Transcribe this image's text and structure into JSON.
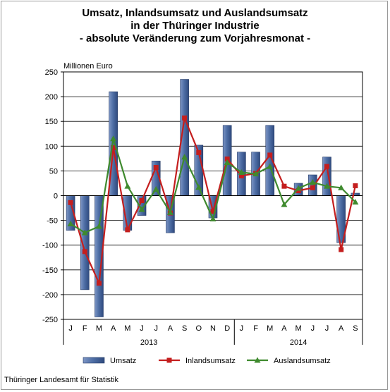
{
  "title_lines": [
    "Umsatz, Inlandsumsatz und Auslandsumsatz",
    "in der Thüringer Industrie",
    "- absolute Veränderung zum Vorjahresmonat -"
  ],
  "unit_label": "Millionen Euro",
  "source": "Thüringer Landesamt für Statistik",
  "colors": {
    "umsatz_fill": "#4f6fa6",
    "inland": "#c41e1e",
    "ausland": "#3f8a2e"
  },
  "chart_data": {
    "type": "bar+line",
    "title": "Umsatz, Inlandsumsatz und Auslandsumsatz in der Thüringer Industrie - absolute Veränderung zum Vorjahresmonat -",
    "ylabel": "Millionen Euro",
    "ylim": [
      -250,
      250
    ],
    "yticks": [
      250,
      200,
      150,
      100,
      50,
      0,
      -50,
      -100,
      -150,
      -200,
      -250
    ],
    "categories": [
      "J",
      "F",
      "M",
      "A",
      "M",
      "J",
      "J",
      "A",
      "S",
      "O",
      "N",
      "D",
      "J",
      "F",
      "M",
      "A",
      "M",
      "J",
      "J",
      "A",
      "S"
    ],
    "year_groups": [
      {
        "label": "2013",
        "start": 0,
        "end": 11
      },
      {
        "label": "2014",
        "start": 12,
        "end": 20
      }
    ],
    "series": [
      {
        "name": "Umsatz",
        "kind": "bar",
        "values": [
          -70,
          -190,
          -245,
          210,
          -70,
          -40,
          70,
          -75,
          235,
          102,
          -45,
          142,
          88,
          88,
          142,
          0,
          25,
          42,
          78,
          -95,
          5
        ]
      },
      {
        "name": "Inlandsumsatz",
        "kind": "line",
        "values": [
          -14,
          -113,
          -177,
          97,
          -69,
          -10,
          57,
          -35,
          157,
          87,
          -32,
          74,
          40,
          45,
          82,
          19,
          10,
          16,
          59,
          -109,
          20
        ]
      },
      {
        "name": "Auslandsumsatz",
        "kind": "line",
        "values": [
          -57,
          -75,
          -62,
          115,
          19,
          -28,
          13,
          -34,
          78,
          17,
          -47,
          67,
          47,
          44,
          59,
          -18,
          15,
          27,
          19,
          16,
          -13
        ]
      }
    ],
    "legend": [
      "Umsatz",
      "Inlandsumsatz",
      "Auslandsumsatz"
    ],
    "legend_position": "bottom",
    "grid": true
  }
}
